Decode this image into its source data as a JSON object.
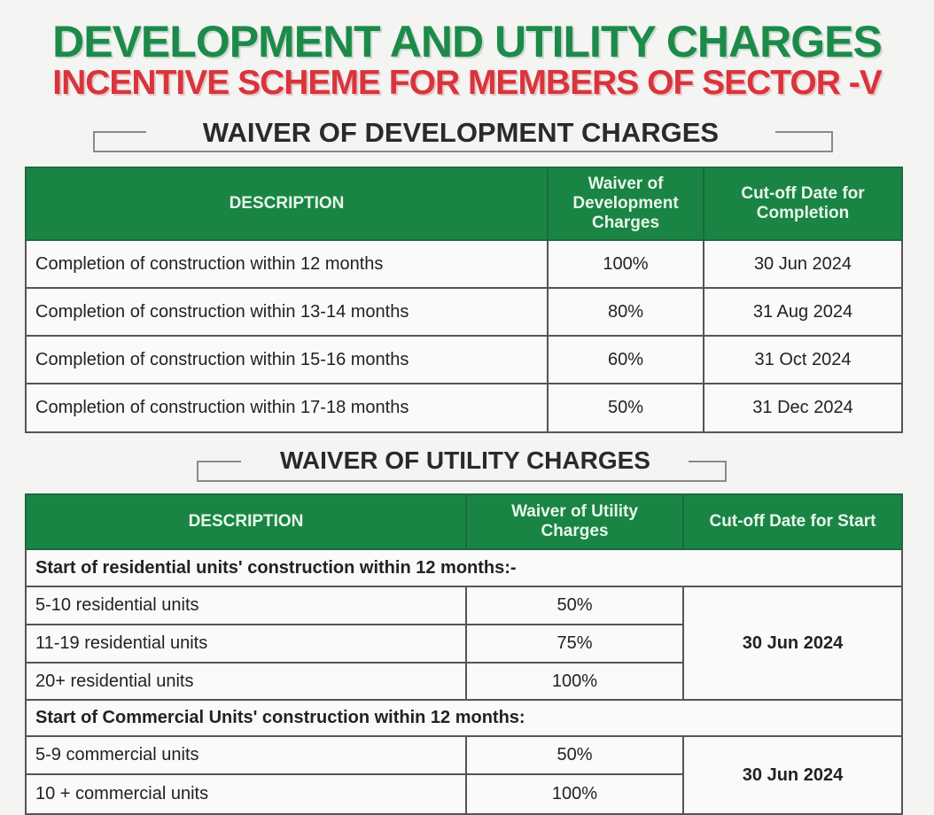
{
  "title": "DEVELOPMENT AND UTILITY CHARGES",
  "subtitle": "INCENTIVE SCHEME FOR MEMBERS OF SECTOR -V",
  "development": {
    "heading": "WAIVER OF DEVELOPMENT CHARGES",
    "headers": [
      "DESCRIPTION",
      "Waiver of Development Charges",
      "Cut-off Date for Completion"
    ],
    "rows": [
      [
        "Completion of construction within 12 months",
        "100%",
        "30 Jun 2024"
      ],
      [
        "Completion of construction within 13-14 months",
        "80%",
        "31 Aug 2024"
      ],
      [
        "Completion of construction within 15-16 months",
        "60%",
        "31 Oct 2024"
      ],
      [
        "Completion of construction within 17-18 months",
        "50%",
        "31 Dec 2024"
      ]
    ]
  },
  "utility": {
    "heading": "WAIVER OF UTILITY CHARGES",
    "headers": [
      "DESCRIPTION",
      "Waiver of Utility Charges",
      "Cut-off Date for Start"
    ],
    "residential": {
      "label": "Start of residential units' construction within 12 months:-",
      "rows": [
        [
          "5-10 residential units",
          "50%"
        ],
        [
          "11-19 residential units",
          "75%"
        ],
        [
          "20+ residential units",
          "100%"
        ]
      ],
      "date": "30 Jun 2024"
    },
    "commercial": {
      "label": "Start of Commercial Units' construction within 12 months:",
      "rows": [
        [
          "5-9 commercial units",
          "50%"
        ],
        [
          "10 + commercial units",
          "100%"
        ]
      ],
      "date": "30 Jun 2024"
    }
  }
}
